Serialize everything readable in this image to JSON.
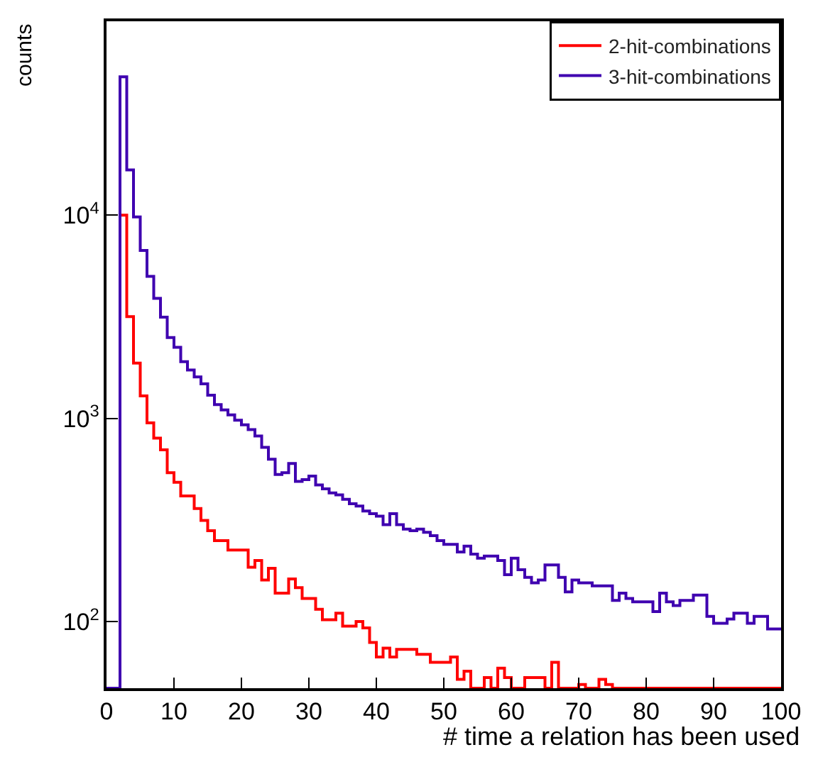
{
  "chart_data": {
    "type": "histogram",
    "xlabel": "# time a relation has been used",
    "ylabel": "counts",
    "bins": [
      0,
      1,
      2,
      3,
      4,
      5,
      6,
      7,
      8,
      9,
      10,
      11,
      12,
      13,
      14,
      15,
      16,
      17,
      18,
      19,
      20,
      21,
      22,
      23,
      24,
      25,
      26,
      27,
      28,
      29,
      30,
      31,
      32,
      33,
      34,
      35,
      36,
      37,
      38,
      39,
      40,
      41,
      42,
      43,
      44,
      45,
      46,
      47,
      48,
      49,
      50,
      51,
      52,
      53,
      54,
      55,
      56,
      57,
      58,
      59,
      60,
      61,
      62,
      63,
      64,
      65,
      66,
      67,
      68,
      69,
      70,
      71,
      72,
      73,
      74,
      75,
      76,
      77,
      78,
      79,
      80,
      81,
      82,
      83,
      84,
      85,
      86,
      87,
      88,
      89,
      90,
      91,
      92,
      93,
      94,
      95,
      96,
      97,
      98,
      99,
      100
    ],
    "series": [
      {
        "name": "2-hit-combinations",
        "color": "#ff0000",
        "values": [
          null,
          null,
          10000,
          3170,
          1870,
          1290,
          950,
          800,
          700,
          540,
          485,
          415,
          415,
          360,
          315,
          280,
          250,
          250,
          225,
          225,
          225,
          185,
          200,
          160,
          183,
          138,
          138,
          162,
          147,
          130,
          130,
          115,
          102,
          102,
          110,
          95,
          95,
          100,
          93,
          79,
          67,
          74,
          67,
          73,
          73,
          73,
          69,
          69,
          63,
          63,
          63,
          67,
          52,
          57,
          null,
          null,
          53,
          null,
          59,
          53,
          null,
          null,
          53,
          53,
          53,
          null,
          63,
          null,
          null,
          null,
          49,
          null,
          null,
          52,
          49,
          null,
          null,
          null,
          null,
          null,
          null,
          null,
          null,
          null,
          null,
          null,
          null,
          null,
          null,
          null,
          null,
          null,
          null,
          null,
          null,
          null,
          null,
          null,
          null,
          null
        ]
      },
      {
        "name": "3-hit-combinations",
        "color": "#3f00b0",
        "values": [
          null,
          null,
          48000,
          16700,
          9800,
          6700,
          5000,
          3900,
          3150,
          2500,
          2240,
          1900,
          1730,
          1600,
          1480,
          1300,
          1170,
          1100,
          1040,
          980,
          930,
          880,
          820,
          720,
          630,
          530,
          540,
          600,
          490,
          500,
          520,
          470,
          450,
          430,
          420,
          400,
          380,
          370,
          350,
          340,
          330,
          300,
          340,
          300,
          285,
          280,
          285,
          275,
          265,
          250,
          240,
          240,
          220,
          235,
          215,
          205,
          210,
          210,
          200,
          170,
          205,
          180,
          165,
          155,
          160,
          190,
          190,
          165,
          140,
          160,
          155,
          155,
          150,
          150,
          150,
          127,
          138,
          130,
          125,
          125,
          125,
          112,
          138,
          125,
          120,
          127,
          127,
          135,
          135,
          106,
          98,
          98,
          103,
          110,
          110,
          98,
          106,
          106,
          92,
          92
        ]
      }
    ],
    "xlim": [
      0,
      100
    ],
    "xticks": [
      0,
      10,
      20,
      30,
      40,
      50,
      60,
      70,
      80,
      90,
      100
    ],
    "log": "y",
    "ylim": [
      47,
      90000
    ],
    "yticks": [
      {
        "value": 100,
        "label": "10$^{2}$"
      },
      {
        "value": 1000,
        "label": "10$^{3}$"
      },
      {
        "value": 10000,
        "label": "10$^{4}$"
      }
    ],
    "grid": false,
    "legend": "top right"
  }
}
